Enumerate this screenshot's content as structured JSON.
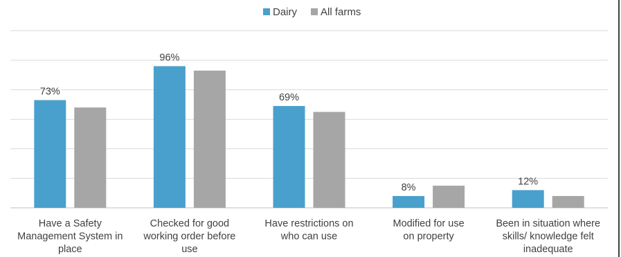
{
  "chart_data": {
    "type": "bar",
    "title": "",
    "xlabel": "",
    "ylabel": "",
    "ylim": [
      0,
      120
    ],
    "grid": true,
    "legend_position": "top-center",
    "categories": [
      "Have a Safety Management System in place",
      "Checked for good working order before use",
      "Have restrictions on who can use",
      "Modified for use on property",
      "Been in situation where skills/ knowledge felt inadequate"
    ],
    "category_label_lines": [
      [
        "Have a Safety",
        "Management System in",
        "place"
      ],
      [
        "Checked for good",
        "working order before",
        "use"
      ],
      [
        "Have restrictions on",
        "who can use"
      ],
      [
        "Modified for use",
        "on property"
      ],
      [
        "Been in situation where",
        "skills/ knowledge felt",
        "inadequate"
      ]
    ],
    "series": [
      {
        "name": "Dairy",
        "color": "#4aa0cc",
        "values": [
          73,
          96,
          69,
          8,
          12
        ],
        "data_labels": [
          "73%",
          "96%",
          "69%",
          "8%",
          "12%"
        ]
      },
      {
        "name": "All farms",
        "color": "#a6a6a6",
        "values": [
          68,
          93,
          65,
          15,
          8
        ],
        "data_labels": []
      }
    ]
  }
}
